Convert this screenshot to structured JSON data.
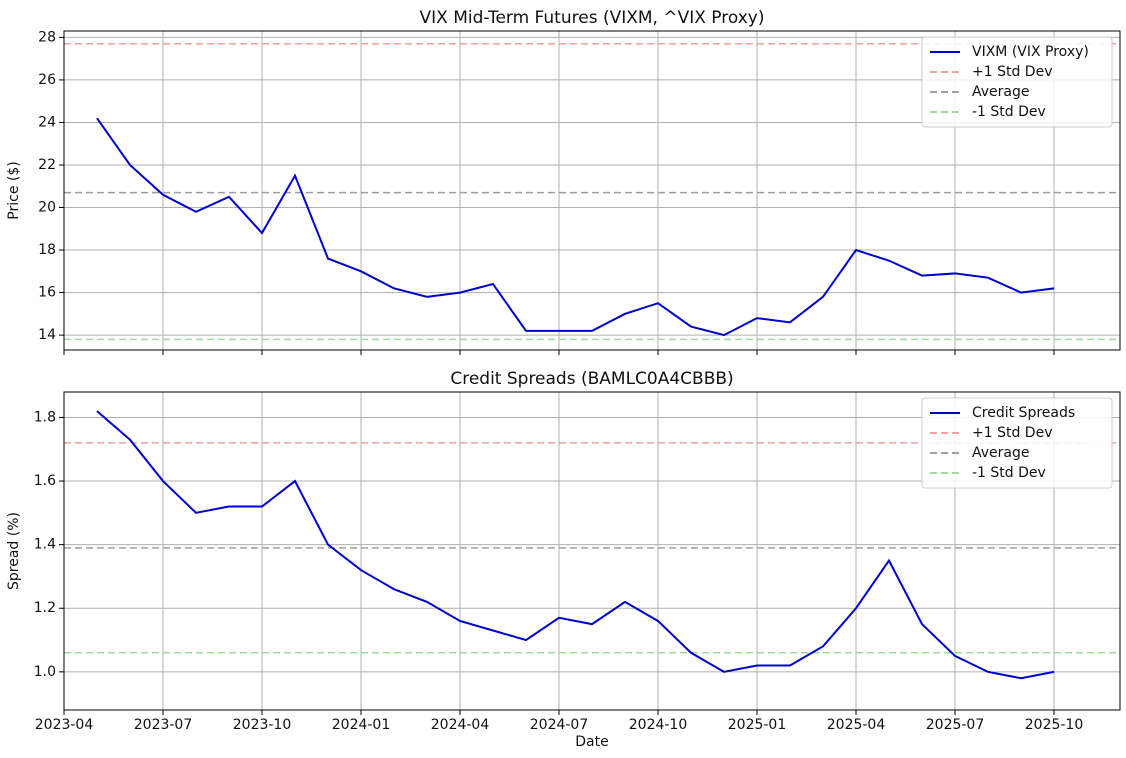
{
  "chart_data": [
    {
      "type": "line",
      "title": "VIX Mid-Term Futures (VIXM, ^VIX Proxy)",
      "ylabel": "Price ($)",
      "x": [
        "2023-05",
        "2023-06",
        "2023-07",
        "2023-08",
        "2023-09",
        "2023-10",
        "2023-11",
        "2023-12",
        "2024-01",
        "2024-02",
        "2024-03",
        "2024-04",
        "2024-05",
        "2024-06",
        "2024-07",
        "2024-08",
        "2024-09",
        "2024-10",
        "2024-11",
        "2024-12",
        "2025-01",
        "2025-02",
        "2025-03",
        "2025-04",
        "2025-05",
        "2025-06",
        "2025-07",
        "2025-08",
        "2025-09",
        "2025-10"
      ],
      "series": [
        {
          "name": "VIXM (VIX Proxy)",
          "color": "#0000cc",
          "values": [
            24.2,
            22.0,
            20.6,
            19.8,
            20.5,
            18.8,
            21.5,
            17.6,
            17.0,
            16.2,
            15.8,
            16.0,
            16.4,
            14.2,
            14.2,
            14.2,
            15.0,
            15.5,
            14.4,
            14.0,
            14.8,
            14.6,
            15.8,
            18.0,
            17.5,
            16.8,
            16.9,
            16.7,
            16.0,
            16.2
          ]
        }
      ],
      "hlines": [
        {
          "name": "+1 Std Dev",
          "value": 27.7,
          "color": "#f2a0a0"
        },
        {
          "name": "Average",
          "value": 20.7,
          "color": "#a0a0a0"
        },
        {
          "name": "-1 Std Dev",
          "value": 13.8,
          "color": "#a0d8a0"
        }
      ],
      "xlim": [
        "2023-04",
        "2025-12"
      ],
      "xticks": [
        "2023-04",
        "2023-07",
        "2023-10",
        "2024-01",
        "2024-04",
        "2024-07",
        "2024-10",
        "2025-01",
        "2025-04",
        "2025-07",
        "2025-10"
      ],
      "ylim": [
        13.3,
        28.3
      ],
      "yticks": [
        14,
        16,
        18,
        20,
        22,
        24,
        26,
        28
      ],
      "grid": true,
      "legend": "upper right"
    },
    {
      "type": "line",
      "title": "Credit Spreads (BAMLC0A4CBBB)",
      "ylabel": "Spread (%)",
      "xlabel": "Date",
      "x": [
        "2023-05",
        "2023-06",
        "2023-07",
        "2023-08",
        "2023-09",
        "2023-10",
        "2023-11",
        "2023-12",
        "2024-01",
        "2024-02",
        "2024-03",
        "2024-04",
        "2024-05",
        "2024-06",
        "2024-07",
        "2024-08",
        "2024-09",
        "2024-10",
        "2024-11",
        "2024-12",
        "2025-01",
        "2025-02",
        "2025-03",
        "2025-04",
        "2025-05",
        "2025-06",
        "2025-07",
        "2025-08",
        "2025-09",
        "2025-10"
      ],
      "series": [
        {
          "name": "Credit Spreads",
          "color": "#0000cc",
          "values": [
            1.82,
            1.73,
            1.6,
            1.5,
            1.52,
            1.52,
            1.6,
            1.4,
            1.32,
            1.26,
            1.22,
            1.16,
            1.13,
            1.1,
            1.17,
            1.15,
            1.22,
            1.16,
            1.06,
            1.0,
            1.02,
            1.02,
            1.08,
            1.2,
            1.35,
            1.15,
            1.05,
            1.0,
            0.98,
            1.0
          ]
        }
      ],
      "hlines": [
        {
          "name": "+1 Std Dev",
          "value": 1.72,
          "color": "#f2a0a0"
        },
        {
          "name": "Average",
          "value": 1.39,
          "color": "#a0a0a0"
        },
        {
          "name": "-1 Std Dev",
          "value": 1.06,
          "color": "#a0d8a0"
        }
      ],
      "xlim": [
        "2023-04",
        "2025-12"
      ],
      "xticks": [
        "2023-04",
        "2023-07",
        "2023-10",
        "2024-01",
        "2024-04",
        "2024-07",
        "2024-10",
        "2025-01",
        "2025-04",
        "2025-07",
        "2025-10"
      ],
      "ylim": [
        0.88,
        1.88
      ],
      "yticks": [
        {
          "value": 1,
          "label": "1.0"
        },
        1.2,
        1.4,
        1.6,
        1.8
      ],
      "grid": true,
      "legend": "upper right"
    }
  ]
}
